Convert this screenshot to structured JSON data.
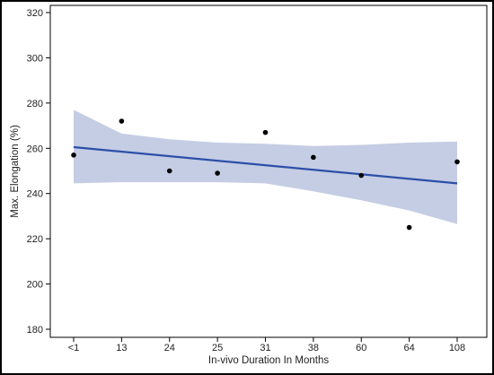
{
  "chart_data": {
    "type": "scatter",
    "title": "",
    "xlabel": "In-vivo Duration In Months",
    "ylabel": "Max. Elongation (%)",
    "categories": [
      "<1",
      "13",
      "24",
      "25",
      "31",
      "38",
      "60",
      "64",
      "108"
    ],
    "ylim": [
      180,
      320
    ],
    "yticks": [
      180,
      200,
      220,
      240,
      260,
      280,
      300,
      320
    ],
    "grid": false,
    "legend": "none",
    "points": [
      {
        "x": "<1",
        "y": 257
      },
      {
        "x": "13",
        "y": 272
      },
      {
        "x": "24",
        "y": 250
      },
      {
        "x": "25",
        "y": 249
      },
      {
        "x": "31",
        "y": 267
      },
      {
        "x": "38",
        "y": 256
      },
      {
        "x": "60",
        "y": 248
      },
      {
        "x": "64",
        "y": 225
      },
      {
        "x": "108",
        "y": 254
      }
    ],
    "fit_line": {
      "start": 260.5,
      "end": 244.5
    },
    "confidence_band": {
      "upper": [
        277,
        266.5,
        264,
        262.5,
        262,
        261,
        261.5,
        262.5,
        263
      ],
      "lower": [
        244.5,
        245,
        245,
        245,
        244.5,
        241,
        237,
        232.5,
        226.5
      ]
    },
    "colors": {
      "line": "#2c4fa8",
      "band": "#c5cde4",
      "points": "#000000",
      "frame": "#000000"
    }
  }
}
